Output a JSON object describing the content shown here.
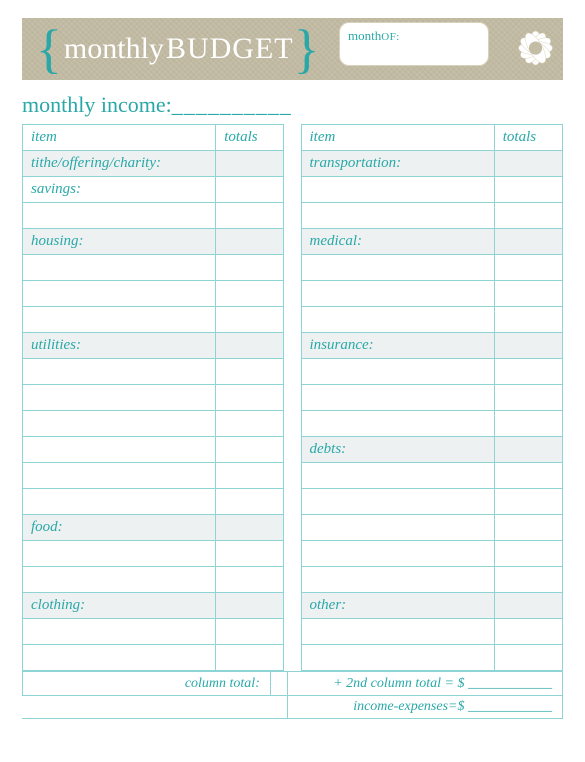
{
  "colors": {
    "accent": "#2aa8a8",
    "border": "#8fd4d4",
    "shaded_row": "#eef1f1",
    "banner_bg": "#c4bda6",
    "white": "#ffffff"
  },
  "banner": {
    "brace_open": "{",
    "brace_close": "}",
    "title_script": "monthly",
    "title_caps": "BUDGET",
    "month_script": "month",
    "month_caps": "OF:"
  },
  "income": {
    "label": "monthly income:",
    "blank": "__________"
  },
  "table": {
    "headers": {
      "item": "item",
      "totals": "totals"
    },
    "left": [
      {
        "label": "tithe/offering/charity:",
        "shaded": true
      },
      {
        "label": "savings:",
        "shaded": false
      },
      {
        "label": "",
        "shaded": false
      },
      {
        "label": "housing:",
        "shaded": true
      },
      {
        "label": "",
        "shaded": false
      },
      {
        "label": "",
        "shaded": false
      },
      {
        "label": "",
        "shaded": false
      },
      {
        "label": "utilities:",
        "shaded": true
      },
      {
        "label": "",
        "shaded": false
      },
      {
        "label": "",
        "shaded": false
      },
      {
        "label": "",
        "shaded": false
      },
      {
        "label": "",
        "shaded": false
      },
      {
        "label": "",
        "shaded": false
      },
      {
        "label": "",
        "shaded": false
      },
      {
        "label": "food:",
        "shaded": true
      },
      {
        "label": "",
        "shaded": false
      },
      {
        "label": "",
        "shaded": false
      },
      {
        "label": "clothing:",
        "shaded": true
      },
      {
        "label": "",
        "shaded": false
      },
      {
        "label": "",
        "shaded": false
      }
    ],
    "right": [
      {
        "label": "transportation:",
        "shaded": true
      },
      {
        "label": "",
        "shaded": false
      },
      {
        "label": "",
        "shaded": false
      },
      {
        "label": "medical:",
        "shaded": true
      },
      {
        "label": "",
        "shaded": false
      },
      {
        "label": "",
        "shaded": false
      },
      {
        "label": "",
        "shaded": false
      },
      {
        "label": "insurance:",
        "shaded": true
      },
      {
        "label": "",
        "shaded": false
      },
      {
        "label": "",
        "shaded": false
      },
      {
        "label": "",
        "shaded": false
      },
      {
        "label": "debts:",
        "shaded": true
      },
      {
        "label": "",
        "shaded": false
      },
      {
        "label": "",
        "shaded": false
      },
      {
        "label": "",
        "shaded": false
      },
      {
        "label": "",
        "shaded": false
      },
      {
        "label": "",
        "shaded": false
      },
      {
        "label": "other:",
        "shaded": true
      },
      {
        "label": "",
        "shaded": false
      },
      {
        "label": "",
        "shaded": false
      }
    ]
  },
  "footer": {
    "col_total": "column total:",
    "second_total": "+ 2nd column total = $ ____________",
    "income_exp": "income-expenses=$ ____________"
  }
}
